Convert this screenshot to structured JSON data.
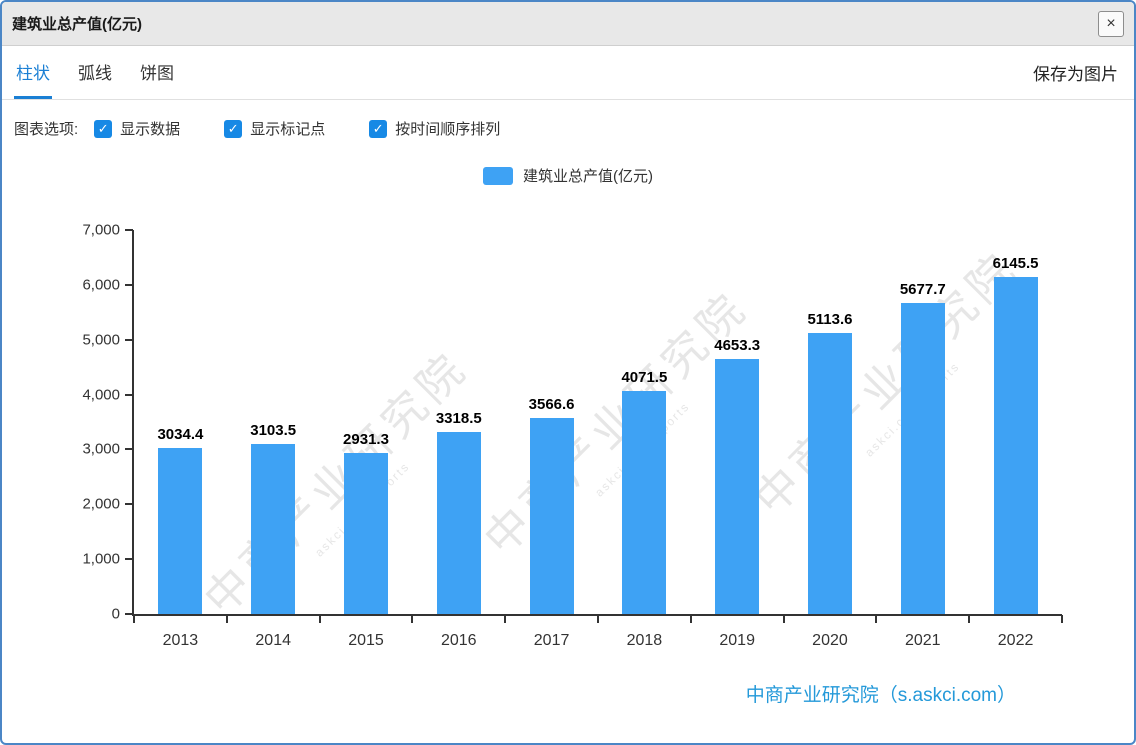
{
  "window": {
    "title": "建筑业总产值(亿元)",
    "close_glyph": "×"
  },
  "tabs": [
    {
      "label": "柱状",
      "active": true
    },
    {
      "label": "弧线",
      "active": false
    },
    {
      "label": "饼图",
      "active": false
    }
  ],
  "save_as_image": "保存为图片",
  "options": {
    "label": "图表选项:",
    "items": [
      {
        "label": "显示数据",
        "checked": true
      },
      {
        "label": "显示标记点",
        "checked": true
      },
      {
        "label": "按时间顺序排列",
        "checked": true
      }
    ],
    "check_glyph": "✓"
  },
  "legend": {
    "label": "建筑业总产值(亿元)",
    "color": "#3ea2f4"
  },
  "chart_data": {
    "type": "bar",
    "title": "建筑业总产值(亿元)",
    "categories": [
      "2013",
      "2014",
      "2015",
      "2016",
      "2017",
      "2018",
      "2019",
      "2020",
      "2021",
      "2022"
    ],
    "values": [
      3034.4,
      3103.5,
      2931.3,
      3318.5,
      3566.6,
      4071.5,
      4653.3,
      5113.6,
      5677.7,
      6145.5
    ],
    "ylim": [
      0,
      7000
    ],
    "yticks": [
      0,
      1000,
      2000,
      3000,
      4000,
      5000,
      6000,
      7000
    ],
    "ytick_labels": [
      "0",
      "1,000",
      "2,000",
      "3,000",
      "4,000",
      "5,000",
      "6,000",
      "7,000"
    ],
    "xlabel": "",
    "ylabel": "",
    "grid": false,
    "legend_entries": [
      "建筑业总产值(亿元)"
    ],
    "legend_position": "top",
    "bar_color": "#3ea2f4",
    "value_labels_shown": true
  },
  "watermark": {
    "text": "中商产业研究院",
    "subtext": "askci.com/reports"
  },
  "credit": "中商产业研究院（s.askci.com）"
}
